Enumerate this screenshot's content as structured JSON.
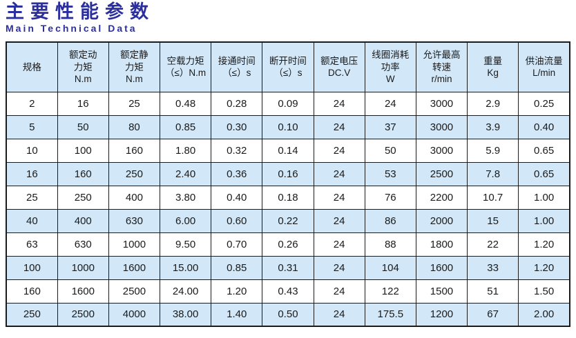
{
  "page": {
    "title": "主要性能参数",
    "subtitle": "Main Technical Data"
  },
  "colors": {
    "title_blue": "#2b2f9e",
    "row_blue": "#d2e7f7",
    "border": "#1a1a1a"
  },
  "table": {
    "headers": [
      "规格",
      "额定动\n力矩\nN.m",
      "额定静\n力矩\nN.m",
      "空载力矩\n（≤）N.m",
      "接通时间\n（≤）s",
      "断开时间\n（≤）s",
      "额定电压\nDC.V",
      "线圈消耗\n功率\nW",
      "允许最高\n转速\nr/min",
      "重量\nKg",
      "供油流量\nL/min"
    ],
    "rows": [
      [
        "2",
        "16",
        "25",
        "0.48",
        "0.28",
        "0.09",
        "24",
        "24",
        "3000",
        "2.9",
        "0.25"
      ],
      [
        "5",
        "50",
        "80",
        "0.85",
        "0.30",
        "0.10",
        "24",
        "37",
        "3000",
        "3.9",
        "0.40"
      ],
      [
        "10",
        "100",
        "160",
        "1.80",
        "0.32",
        "0.14",
        "24",
        "50",
        "3000",
        "5.9",
        "0.65"
      ],
      [
        "16",
        "160",
        "250",
        "2.40",
        "0.36",
        "0.16",
        "24",
        "53",
        "2500",
        "7.8",
        "0.65"
      ],
      [
        "25",
        "250",
        "400",
        "3.80",
        "0.40",
        "0.18",
        "24",
        "76",
        "2200",
        "10.7",
        "1.00"
      ],
      [
        "40",
        "400",
        "630",
        "6.00",
        "0.60",
        "0.22",
        "24",
        "86",
        "2000",
        "15",
        "1.00"
      ],
      [
        "63",
        "630",
        "1000",
        "9.50",
        "0.70",
        "0.26",
        "24",
        "88",
        "1800",
        "22",
        "1.20"
      ],
      [
        "100",
        "1000",
        "1600",
        "15.00",
        "0.85",
        "0.31",
        "24",
        "104",
        "1600",
        "33",
        "1.20"
      ],
      [
        "160",
        "1600",
        "2500",
        "24.00",
        "1.20",
        "0.43",
        "24",
        "122",
        "1500",
        "51",
        "1.50"
      ],
      [
        "250",
        "2500",
        "4000",
        "38.00",
        "1.40",
        "0.50",
        "24",
        "175.5",
        "1200",
        "67",
        "2.00"
      ]
    ]
  }
}
